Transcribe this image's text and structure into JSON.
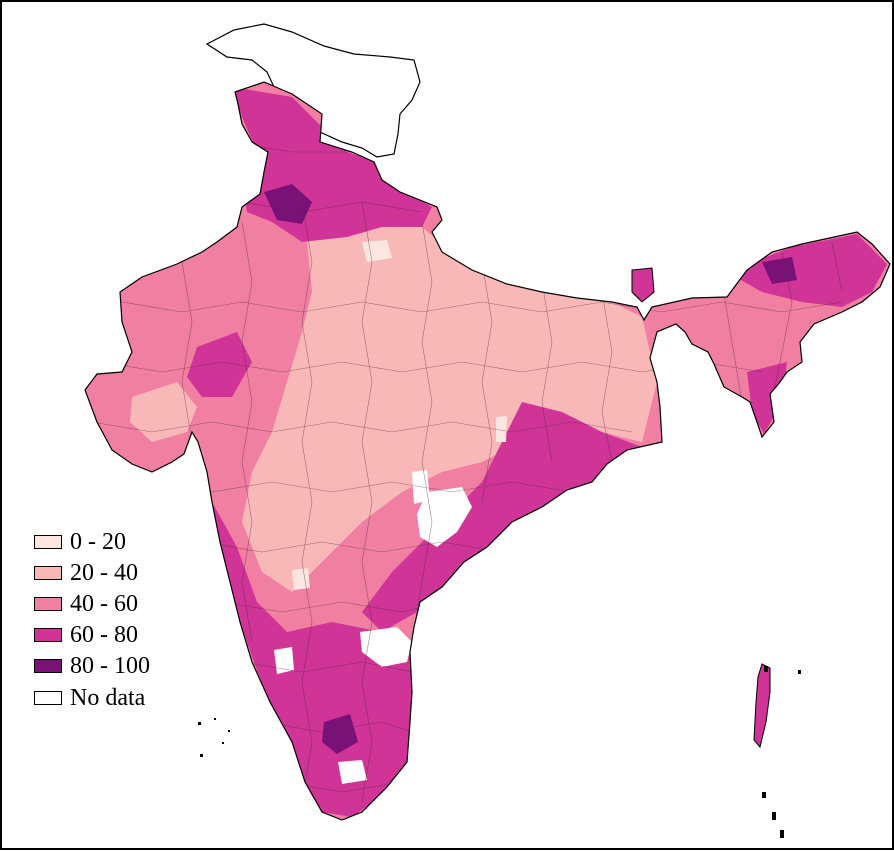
{
  "map": {
    "subject": "India districts choropleth",
    "border_color": "#000000",
    "background": "#ffffff"
  },
  "legend": {
    "items": [
      {
        "label": "0 - 20",
        "color": "#fde6e0"
      },
      {
        "label": "20 - 40",
        "color": "#f9b8b8"
      },
      {
        "label": "40 - 60",
        "color": "#f17fa2"
      },
      {
        "label": "60 - 80",
        "color": "#d03497"
      },
      {
        "label": "80 - 100",
        "color": "#7a1177"
      },
      {
        "label": "No data",
        "color": "#ffffff"
      }
    ]
  }
}
